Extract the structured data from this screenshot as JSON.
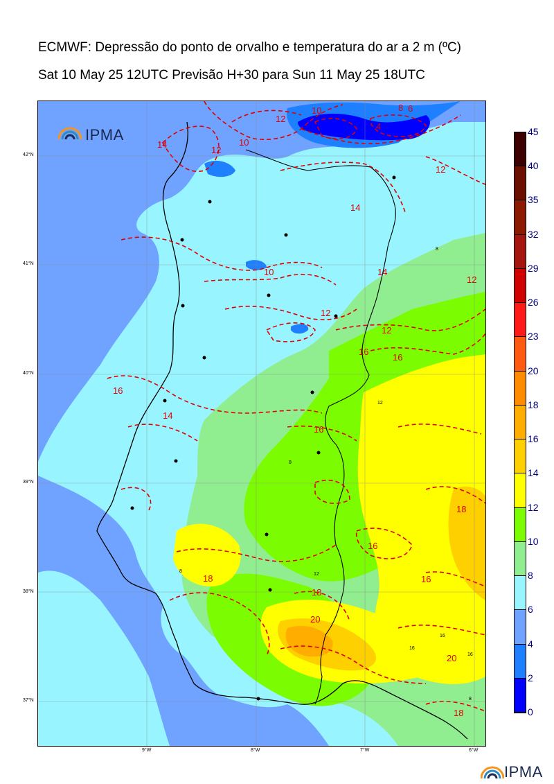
{
  "title_line1": "ECMWF: Depressão do ponto de orvalho e temperatura do ar a 2 m (ºC)",
  "title_line2": "Sat 10 May 25 12UTC Previsão H+30 para Sun 11 May 25 18UTC",
  "brand": "IPMA",
  "latitudes": [
    "42°N",
    "41°N",
    "40°N",
    "39°N",
    "38°N",
    "37°N"
  ],
  "longitudes": [
    "9°W",
    "8°W",
    "7°W",
    "6°W"
  ],
  "colorbar": {
    "labels": [
      "45",
      "40",
      "35",
      "32",
      "29",
      "26",
      "23",
      "20",
      "18",
      "16",
      "14",
      "12",
      "10",
      "8",
      "6",
      "4",
      "2",
      "0"
    ],
    "colors": [
      "#3d0000",
      "#6b0f00",
      "#8b1a00",
      "#a51510",
      "#d00000",
      "#ff1a1a",
      "#ff5a10",
      "#ff8c00",
      "#ffae00",
      "#ffd000",
      "#ffff00",
      "#7cfc00",
      "#90ee90",
      "#98f5ff",
      "#6fa3ff",
      "#1e7fff",
      "#0000ff"
    ]
  },
  "isotherm_labels": [
    "10",
    "12",
    "8",
    "6",
    "4",
    "14",
    "10",
    "12",
    "14",
    "12",
    "10",
    "12",
    "14",
    "12",
    "16",
    "12",
    "16",
    "14",
    "16",
    "16",
    "18",
    "16",
    "16",
    "18",
    "18",
    "20",
    "20",
    "18"
  ],
  "small_labels": [
    "8",
    "12",
    "8",
    "12",
    "8",
    "16",
    "16",
    "16",
    "8"
  ]
}
